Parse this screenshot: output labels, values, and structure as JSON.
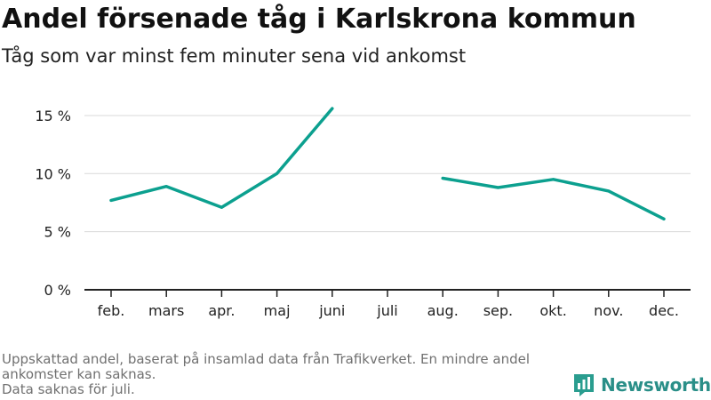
{
  "title": "Andel försenade tåg i Karlskrona kommun",
  "subtitle": "Tåg som var minst fem minuter sena vid ankomst",
  "footnotes": [
    "Uppskattad andel, baserat på insamlad data från Trafikverket. En mindre andel ankomster kan saknas.",
    "Data saknas för juli."
  ],
  "brand": {
    "name": "Newsworthy",
    "icon": "bar-chart-logo-icon",
    "color": "#2a9d8f"
  },
  "chart_data": {
    "type": "line",
    "title": "Andel försenade tåg i Karlskrona kommun",
    "subtitle": "Tåg som var minst fem minuter sena vid ankomst",
    "categories": [
      "feb.",
      "mars",
      "apr.",
      "maj",
      "juni",
      "juli",
      "aug.",
      "sep.",
      "okt.",
      "nov.",
      "dec."
    ],
    "series": [
      {
        "values": [
          7.7,
          8.9,
          7.1,
          10.0,
          15.6,
          null,
          9.6,
          8.8,
          9.5,
          8.5,
          6.1
        ],
        "color": "#0ca08f"
      }
    ],
    "yticks": [
      0,
      5,
      10,
      15
    ],
    "ytick_labels": [
      "0 %",
      "5 %",
      "10 %",
      "15 %"
    ],
    "ylim": [
      0,
      16
    ],
    "grid": true,
    "legend": "none"
  }
}
